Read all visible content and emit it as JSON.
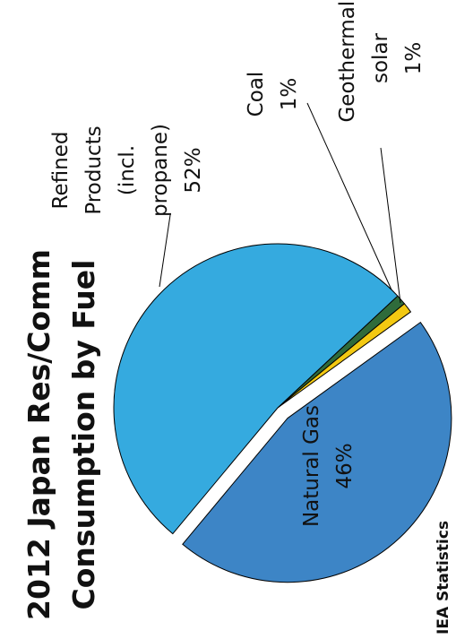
{
  "chart_data": {
    "type": "pie",
    "title": [
      "2012 Japan Res/Comm",
      "Consumption by Fuel"
    ],
    "categories": [
      "Coal",
      "Geothermal, solar",
      "Natural Gas",
      "Refined Products (incl. propane)"
    ],
    "values": [
      1,
      1,
      46,
      52
    ],
    "value_labels": [
      "1%",
      "1%",
      "46%",
      "52%"
    ],
    "colors": [
      "#2f6b3b",
      "#f3c912",
      "#3d85c6",
      "#35aadf"
    ],
    "exploded": "Natural Gas",
    "source": "IEA Statistics"
  }
}
